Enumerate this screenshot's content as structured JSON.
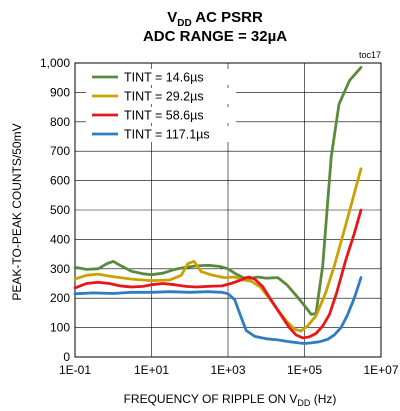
{
  "chart_data": {
    "type": "line",
    "title_parts": {
      "v": "V",
      "sub": "DD",
      "rest": " AC PSRR"
    },
    "subtitle": "ADC RANGE = 32µA",
    "figure_tag": "toc17",
    "xlabel_parts": {
      "main": "FREQUENCY OF RIPPLE ON V",
      "sub": "DD",
      "rest": " (Hz)"
    },
    "ylabel": "PEAK-TO-PEAK COUNTS/50mV",
    "x_scale": "log",
    "xlim": [
      0.1,
      10000000
    ],
    "ylim": [
      0,
      1000
    ],
    "x_ticks": [
      0.1,
      10,
      1000,
      100000,
      10000000
    ],
    "x_tick_labels": [
      "1E-01",
      "1E+01",
      "1E+03",
      "1E+05",
      "1E+07"
    ],
    "y_ticks": [
      0,
      100,
      200,
      300,
      400,
      500,
      600,
      700,
      800,
      900,
      1000
    ],
    "y_tick_labels": [
      "0",
      "100",
      "200",
      "300",
      "400",
      "500",
      "600",
      "700",
      "800",
      "900",
      "1,000"
    ],
    "grid": true,
    "legend_position": "top-left",
    "series": [
      {
        "name": "TINT = 14.6µs",
        "color": "#5b8a3c",
        "points": [
          [
            0.1,
            305
          ],
          [
            0.2,
            298
          ],
          [
            0.4,
            300
          ],
          [
            0.7,
            318
          ],
          [
            1,
            325
          ],
          [
            1.5,
            312
          ],
          [
            3,
            292
          ],
          [
            6,
            283
          ],
          [
            10,
            280
          ],
          [
            20,
            285
          ],
          [
            40,
            298
          ],
          [
            80,
            305
          ],
          [
            150,
            310
          ],
          [
            300,
            312
          ],
          [
            600,
            308
          ],
          [
            1000,
            300
          ],
          [
            1500,
            285
          ],
          [
            2500,
            270
          ],
          [
            4000,
            268
          ],
          [
            6000,
            272
          ],
          [
            10000,
            268
          ],
          [
            20000,
            270
          ],
          [
            35000,
            245
          ],
          [
            60000,
            210
          ],
          [
            100000,
            175
          ],
          [
            150000,
            145
          ],
          [
            200000,
            148
          ],
          [
            300000,
            310
          ],
          [
            500000,
            680
          ],
          [
            800000,
            860
          ],
          [
            1500000,
            940
          ],
          [
            3000000,
            985
          ]
        ]
      },
      {
        "name": "TINT = 29.2µs",
        "color": "#c9a200",
        "points": [
          [
            0.1,
            265
          ],
          [
            0.2,
            278
          ],
          [
            0.4,
            282
          ],
          [
            0.8,
            275
          ],
          [
            1.5,
            270
          ],
          [
            3,
            265
          ],
          [
            6,
            262
          ],
          [
            10,
            260
          ],
          [
            30,
            262
          ],
          [
            60,
            278
          ],
          [
            90,
            318
          ],
          [
            130,
            325
          ],
          [
            200,
            290
          ],
          [
            400,
            278
          ],
          [
            800,
            270
          ],
          [
            1500,
            272
          ],
          [
            2500,
            262
          ],
          [
            4000,
            258
          ],
          [
            7000,
            238
          ],
          [
            12000,
            200
          ],
          [
            20000,
            160
          ],
          [
            35000,
            120
          ],
          [
            55000,
            95
          ],
          [
            80000,
            88
          ],
          [
            120000,
            105
          ],
          [
            200000,
            140
          ],
          [
            350000,
            215
          ],
          [
            600000,
            310
          ],
          [
            1200000,
            450
          ],
          [
            3000000,
            640
          ]
        ]
      },
      {
        "name": "TINT = 58.6µs",
        "color": "#e8161b",
        "points": [
          [
            0.1,
            235
          ],
          [
            0.2,
            250
          ],
          [
            0.4,
            254
          ],
          [
            0.8,
            250
          ],
          [
            1.5,
            242
          ],
          [
            3,
            238
          ],
          [
            6,
            240
          ],
          [
            10,
            246
          ],
          [
            20,
            250
          ],
          [
            40,
            246
          ],
          [
            80,
            240
          ],
          [
            150,
            238
          ],
          [
            300,
            240
          ],
          [
            700,
            242
          ],
          [
            1200,
            250
          ],
          [
            2000,
            260
          ],
          [
            2800,
            268
          ],
          [
            3500,
            272
          ],
          [
            5000,
            265
          ],
          [
            8000,
            240
          ],
          [
            14000,
            190
          ],
          [
            25000,
            140
          ],
          [
            40000,
            100
          ],
          [
            60000,
            75
          ],
          [
            90000,
            65
          ],
          [
            130000,
            68
          ],
          [
            200000,
            80
          ],
          [
            300000,
            105
          ],
          [
            450000,
            145
          ],
          [
            700000,
            220
          ],
          [
            1200000,
            330
          ],
          [
            2000000,
            420
          ],
          [
            3000000,
            500
          ]
        ]
      },
      {
        "name": "TINT = 117.1µs",
        "color": "#2f7cc0",
        "points": [
          [
            0.1,
            215
          ],
          [
            0.3,
            218
          ],
          [
            1,
            216
          ],
          [
            3,
            220
          ],
          [
            10,
            220
          ],
          [
            30,
            222
          ],
          [
            100,
            220
          ],
          [
            300,
            222
          ],
          [
            700,
            220
          ],
          [
            1000,
            215
          ],
          [
            1500,
            195
          ],
          [
            2000,
            150
          ],
          [
            3000,
            90
          ],
          [
            5000,
            70
          ],
          [
            10000,
            62
          ],
          [
            20000,
            58
          ],
          [
            40000,
            52
          ],
          [
            70000,
            48
          ],
          [
            100000,
            46
          ],
          [
            150000,
            48
          ],
          [
            250000,
            52
          ],
          [
            400000,
            60
          ],
          [
            600000,
            75
          ],
          [
            900000,
            100
          ],
          [
            1300000,
            140
          ],
          [
            2000000,
            200
          ],
          [
            3000000,
            270
          ]
        ]
      }
    ]
  }
}
